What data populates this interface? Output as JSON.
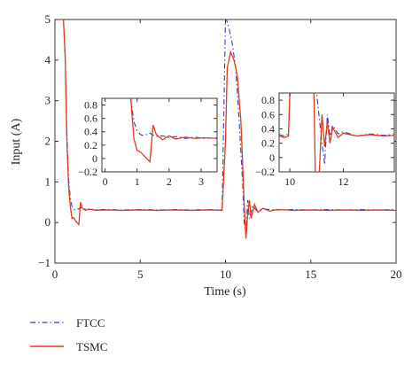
{
  "chart_data": {
    "type": "line",
    "xlabel": "Time (s)",
    "ylabel": "Input (A)",
    "xlim": [
      0,
      20
    ],
    "ylim": [
      -1,
      5
    ],
    "xticks": [
      "0",
      "5",
      "10",
      "15",
      "20"
    ],
    "yticks": [
      "−1",
      "0",
      "1",
      "2",
      "3",
      "4",
      "5"
    ],
    "grid": false,
    "legend_position": "bottom-left",
    "series": [
      {
        "name": "FTCC",
        "color": "#3b3bb5",
        "style": "dash-dot",
        "x": [
          0,
          0.5,
          0.6,
          0.7,
          0.8,
          0.9,
          1.0,
          1.1,
          1.2,
          1.4,
          1.6,
          1.8,
          2.2,
          3,
          4,
          5,
          6,
          7,
          8,
          9,
          9.8,
          10.0,
          10.05,
          10.2,
          10.4,
          10.6,
          10.8,
          11.0,
          11.1,
          11.2,
          11.3,
          11.4,
          11.6,
          11.8,
          12.2,
          13,
          14,
          15,
          16,
          17,
          18,
          19,
          20
        ],
        "y": [
          5,
          5,
          4.0,
          2.2,
          1.1,
          0.6,
          0.4,
          0.33,
          0.3,
          0.34,
          0.38,
          0.33,
          0.32,
          0.32,
          0.31,
          0.32,
          0.31,
          0.32,
          0.31,
          0.32,
          0.31,
          5,
          5,
          4.8,
          4.4,
          3.8,
          2.5,
          1.0,
          0.0,
          -0.3,
          0.55,
          0.1,
          0.42,
          0.3,
          0.33,
          0.31,
          0.32,
          0.31,
          0.32,
          0.31,
          0.32,
          0.31,
          0.32
        ]
      },
      {
        "name": "TSMC",
        "color": "#e03a1c",
        "style": "solid",
        "x": [
          0,
          0.5,
          0.6,
          0.7,
          0.8,
          0.9,
          1.0,
          1.1,
          1.2,
          1.3,
          1.4,
          1.5,
          1.6,
          1.8,
          2.0,
          2.4,
          3,
          4,
          5,
          6,
          7,
          8,
          9,
          9.8,
          10.0,
          10.1,
          10.3,
          10.5,
          10.7,
          10.9,
          11.0,
          11.1,
          11.2,
          11.3,
          11.4,
          11.5,
          11.7,
          11.9,
          12.2,
          12.6,
          13,
          14,
          15,
          16,
          17,
          18,
          19,
          20
        ],
        "y": [
          5,
          5,
          4.1,
          2.0,
          0.9,
          0.4,
          0.1,
          0.12,
          0.05,
          0.0,
          -0.05,
          0.5,
          0.35,
          0.3,
          0.33,
          0.3,
          0.31,
          0.3,
          0.31,
          0.3,
          0.31,
          0.3,
          0.31,
          0.3,
          2.0,
          3.8,
          4.2,
          4.0,
          3.6,
          2.5,
          1.5,
          0.4,
          -0.4,
          0.2,
          0.55,
          0.1,
          0.45,
          0.25,
          0.35,
          0.28,
          0.32,
          0.3,
          0.31,
          0.3,
          0.31,
          0.3,
          0.31,
          0.3
        ]
      }
    ],
    "insets": [
      {
        "xlim": [
          -0.1,
          3.5
        ],
        "ylim": [
          -0.2,
          0.9
        ],
        "xticks": [
          "0",
          "1",
          "2",
          "3"
        ],
        "yticks": [
          "−0.2",
          "0",
          "0.2",
          "0.4",
          "0.6",
          "0.8"
        ],
        "series": [
          {
            "name": "FTCC",
            "x": [
              0.8,
              0.85,
              0.9,
              1.0,
              1.1,
              1.2,
              1.3,
              1.4,
              1.5,
              1.6,
              1.8,
              2.0,
              2.2,
              2.5,
              2.8,
              3.1,
              3.5
            ],
            "y": [
              0.9,
              0.72,
              0.55,
              0.42,
              0.36,
              0.34,
              0.36,
              0.38,
              0.35,
              0.33,
              0.34,
              0.31,
              0.33,
              0.3,
              0.32,
              0.3,
              0.31
            ]
          },
          {
            "name": "TSMC",
            "x": [
              0.8,
              0.85,
              0.9,
              1.0,
              1.1,
              1.2,
              1.3,
              1.4,
              1.5,
              1.6,
              1.8,
              2.0,
              2.2,
              2.5,
              2.8,
              3.1,
              3.5
            ],
            "y": [
              0.9,
              0.6,
              0.3,
              0.12,
              0.1,
              0.05,
              0.0,
              -0.05,
              0.5,
              0.36,
              0.28,
              0.34,
              0.29,
              0.32,
              0.3,
              0.31,
              0.3
            ]
          }
        ]
      },
      {
        "xlim": [
          9.6,
          13.9
        ],
        "ylim": [
          -0.2,
          0.9
        ],
        "xticks": [
          "10",
          "12"
        ],
        "yticks": [
          "−0.2",
          "0",
          "0.2",
          "0.4",
          "0.6",
          "0.8"
        ],
        "series": [
          {
            "name": "FTCC",
            "x": [
              9.6,
              9.8,
              9.95,
              10.0,
              10.05,
              11.0,
              11.2,
              11.3,
              11.4,
              11.5,
              11.6,
              11.8,
              12.0,
              12.5,
              13.0,
              13.5,
              13.9
            ],
            "y": [
              0.32,
              0.3,
              0.33,
              0.9,
              0.9,
              0.9,
              0.2,
              -0.1,
              0.6,
              0.3,
              0.45,
              0.33,
              0.36,
              0.3,
              0.33,
              0.31,
              0.32
            ]
          },
          {
            "name": "TSMC",
            "x": [
              9.6,
              9.8,
              9.95,
              10.0,
              10.05,
              10.9,
              10.95,
              11.1,
              11.2,
              11.3,
              11.4,
              11.5,
              11.6,
              11.8,
              12.0,
              12.5,
              13.0,
              13.5,
              13.9
            ],
            "y": [
              0.3,
              0.28,
              0.3,
              0.9,
              0.9,
              0.9,
              -0.2,
              -0.2,
              0.6,
              0.15,
              0.5,
              0.2,
              0.42,
              0.28,
              0.34,
              0.3,
              0.32,
              0.3,
              0.31
            ]
          }
        ]
      }
    ]
  }
}
